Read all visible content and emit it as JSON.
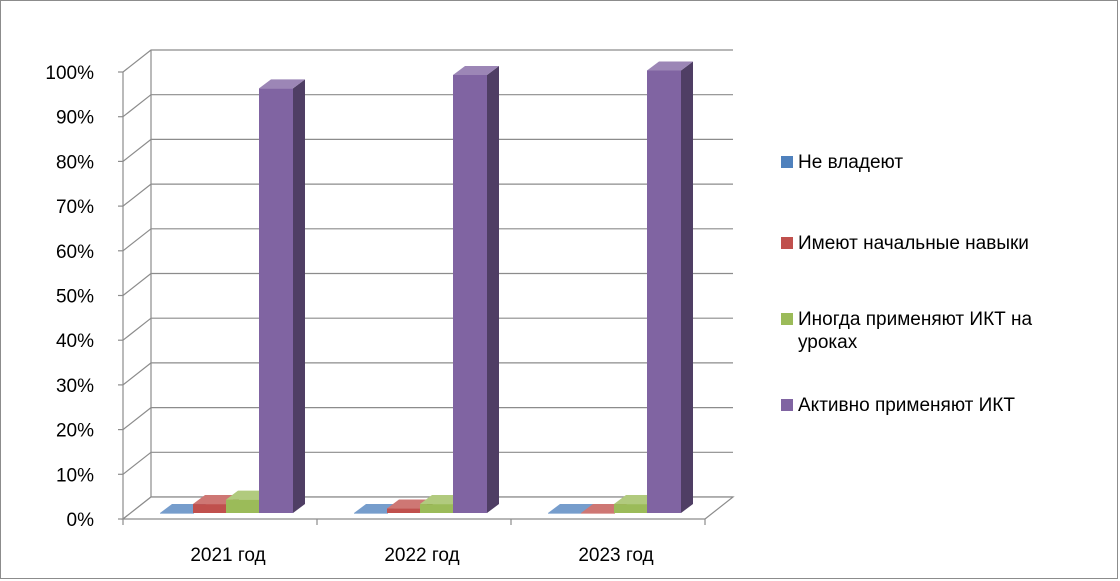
{
  "chart_data": {
    "type": "bar",
    "categories": [
      "2021 год",
      "2022 год",
      "2023 год"
    ],
    "y_ticks": [
      "0%",
      "10%",
      "20%",
      "30%",
      "40%",
      "50%",
      "60%",
      "70%",
      "80%",
      "90%",
      "100%"
    ],
    "ylim": [
      0,
      100
    ],
    "grid": true,
    "legend_position": "right",
    "series": [
      {
        "name": "Не владеют",
        "color": "#4f81bd",
        "values": [
          0,
          0,
          0
        ]
      },
      {
        "name": "Имеют начальные навыки",
        "color": "#c0504d",
        "values": [
          2,
          1,
          0
        ]
      },
      {
        "name": "Иногда применяют ИКТ на уроках",
        "color": "#9bbb59",
        "values": [
          3,
          2,
          2
        ]
      },
      {
        "name": "Активно применяют ИКТ",
        "color": "#8064a2",
        "values": [
          95,
          98,
          99
        ]
      }
    ]
  }
}
